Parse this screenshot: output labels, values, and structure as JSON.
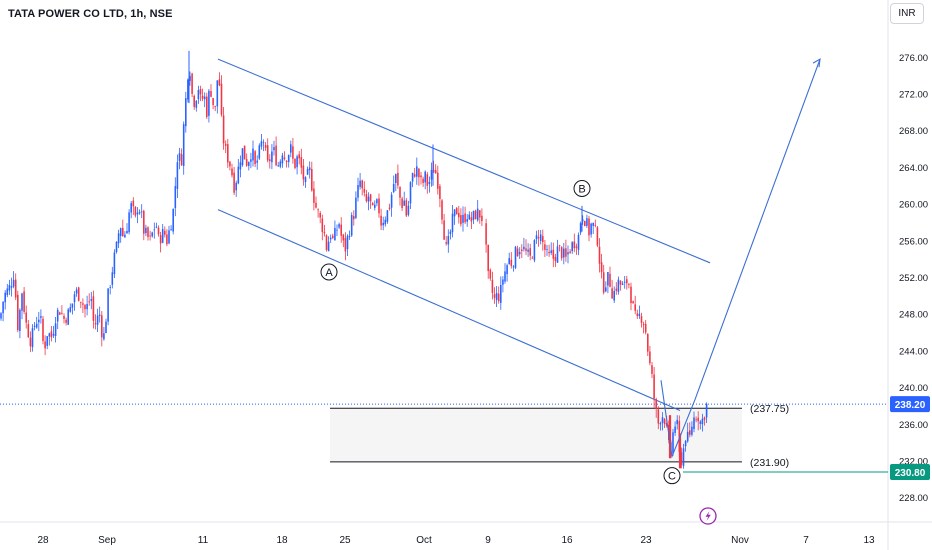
{
  "header": {
    "symbol_title": "TATA POWER CO LTD, 1h, NSE",
    "currency": "INR"
  },
  "chart_data": {
    "type": "candlestick",
    "y_axis": {
      "ticks": [
        "276.00",
        "272.00",
        "268.00",
        "264.00",
        "260.00",
        "256.00",
        "252.00",
        "248.00",
        "244.00",
        "240.00",
        "236.00",
        "232.00",
        "228.00"
      ],
      "range": [
        225,
        281
      ]
    },
    "x_axis": {
      "ticks": [
        "28",
        "Sep",
        "11",
        "18",
        "25",
        "Oct",
        "9",
        "16",
        "23",
        "Nov",
        "7",
        "13"
      ]
    },
    "price_path": [
      [
        0,
        247.5
      ],
      [
        4,
        250
      ],
      [
        10,
        251
      ],
      [
        14,
        252.5
      ],
      [
        18,
        246.5
      ],
      [
        22,
        250.5
      ],
      [
        26,
        247
      ],
      [
        31,
        245
      ],
      [
        35,
        247
      ],
      [
        40,
        248
      ],
      [
        44,
        244
      ],
      [
        47,
        246
      ],
      [
        52,
        245.5
      ],
      [
        56,
        248
      ],
      [
        60,
        248.5
      ],
      [
        64,
        247.5
      ],
      [
        68,
        248
      ],
      [
        72,
        249
      ],
      [
        75,
        250.5
      ],
      [
        80,
        250
      ],
      [
        85,
        248.5
      ],
      [
        88,
        249
      ],
      [
        91,
        250
      ],
      [
        94,
        246.5
      ],
      [
        97,
        247.5
      ],
      [
        100,
        248
      ],
      [
        103,
        245
      ],
      [
        105,
        246.5
      ],
      [
        108,
        250
      ],
      [
        111,
        252
      ],
      [
        114,
        254
      ],
      [
        117,
        255.5
      ],
      [
        120,
        258
      ],
      [
        123,
        256.5
      ],
      [
        126,
        257
      ],
      [
        129,
        259
      ],
      [
        132,
        260
      ],
      [
        135,
        258
      ],
      [
        138,
        260
      ],
      [
        141,
        259
      ],
      [
        144,
        257
      ],
      [
        147,
        256.5
      ],
      [
        150,
        256
      ],
      [
        153,
        257
      ],
      [
        156,
        258
      ],
      [
        158,
        256
      ],
      [
        161,
        256.5
      ],
      [
        164,
        257
      ],
      [
        167,
        256
      ],
      [
        170,
        257.5
      ],
      [
        173,
        259
      ],
      [
        176,
        263
      ],
      [
        178,
        266
      ],
      [
        181,
        264
      ],
      [
        184,
        269
      ],
      [
        187,
        273
      ],
      [
        189,
        276
      ],
      [
        192,
        272
      ],
      [
        195,
        271
      ],
      [
        198,
        273
      ],
      [
        201,
        271
      ],
      [
        204,
        272
      ],
      [
        207,
        270
      ],
      [
        210,
        273
      ],
      [
        213,
        271
      ],
      [
        216,
        270
      ],
      [
        218,
        275.5
      ],
      [
        220,
        272
      ],
      [
        222,
        268
      ],
      [
        225,
        266
      ],
      [
        228,
        265
      ],
      [
        231,
        264
      ],
      [
        234,
        262
      ],
      [
        237,
        263
      ],
      [
        240,
        265
      ],
      [
        243,
        266
      ],
      [
        246,
        264.5
      ],
      [
        249,
        265
      ],
      [
        252,
        266
      ],
      [
        255,
        264
      ],
      [
        258,
        265
      ],
      [
        261,
        266.5
      ],
      [
        264,
        267
      ],
      [
        267,
        264
      ],
      [
        270,
        265
      ],
      [
        273,
        266
      ],
      [
        276,
        265
      ],
      [
        279,
        264
      ],
      [
        282,
        266
      ],
      [
        285,
        265
      ],
      [
        288,
        265.5
      ],
      [
        291,
        266
      ],
      [
        294,
        264
      ],
      [
        297,
        265
      ],
      [
        300,
        264.5
      ],
      [
        303,
        263
      ],
      [
        306,
        262
      ],
      [
        309,
        264
      ],
      [
        312,
        262
      ],
      [
        315,
        260
      ],
      [
        318,
        259
      ],
      [
        321,
        258
      ],
      [
        324,
        257
      ],
      [
        327,
        255
      ],
      [
        330,
        257
      ],
      [
        333,
        256
      ],
      [
        336,
        257
      ],
      [
        339,
        258
      ],
      [
        342,
        256
      ],
      [
        345,
        255
      ],
      [
        348,
        256.5
      ],
      [
        351,
        258
      ],
      [
        354,
        259
      ],
      [
        357,
        261
      ],
      [
        360,
        262.5
      ],
      [
        363,
        261
      ],
      [
        366,
        260
      ],
      [
        369,
        261
      ],
      [
        372,
        259
      ],
      [
        375,
        259.5
      ],
      [
        378,
        260
      ],
      [
        381,
        258
      ],
      [
        384,
        258.5
      ],
      [
        387,
        259
      ],
      [
        390,
        260
      ],
      [
        393,
        262
      ],
      [
        396,
        263
      ],
      [
        399,
        261
      ],
      [
        402,
        260
      ],
      [
        405,
        260.5
      ],
      [
        407,
        258
      ],
      [
        410,
        262
      ],
      [
        413,
        263
      ],
      [
        416,
        264
      ],
      [
        419,
        263
      ],
      [
        422,
        262
      ],
      [
        425,
        263
      ],
      [
        428,
        262
      ],
      [
        431,
        263
      ],
      [
        434,
        264
      ],
      [
        437,
        263
      ],
      [
        440,
        261
      ],
      [
        443,
        258
      ],
      [
        446,
        255
      ],
      [
        449,
        256
      ],
      [
        452,
        258
      ],
      [
        455,
        259
      ],
      [
        458,
        259.5
      ],
      [
        461,
        258
      ],
      [
        464,
        258.5
      ],
      [
        467,
        259
      ],
      [
        470,
        258
      ],
      [
        473,
        258.5
      ],
      [
        476,
        259
      ],
      [
        479,
        259
      ],
      [
        482,
        258.5
      ],
      [
        486,
        255
      ],
      [
        488,
        252
      ],
      [
        491,
        251
      ],
      [
        494,
        249.5
      ],
      [
        497,
        250
      ],
      [
        500,
        250
      ],
      [
        503,
        252
      ],
      [
        506,
        253
      ],
      [
        509,
        254
      ],
      [
        512,
        253.5
      ],
      [
        515,
        254.5
      ],
      [
        518,
        255
      ],
      [
        521,
        255.5
      ],
      [
        524,
        255
      ],
      [
        527,
        254.5
      ],
      [
        530,
        254
      ],
      [
        533,
        255
      ],
      [
        536,
        256
      ],
      [
        539,
        257
      ],
      [
        542,
        256
      ],
      [
        545,
        255
      ],
      [
        548,
        254
      ],
      [
        551,
        254.5
      ],
      [
        554,
        254
      ],
      [
        557,
        255
      ],
      [
        560,
        255
      ],
      [
        563,
        254.5
      ],
      [
        566,
        254
      ],
      [
        569,
        255
      ],
      [
        572,
        255.5
      ],
      [
        575,
        256
      ],
      [
        578,
        256
      ],
      [
        580,
        258
      ],
      [
        583,
        259
      ],
      [
        586,
        258
      ],
      [
        589,
        257
      ],
      [
        592,
        258
      ],
      [
        595,
        257
      ],
      [
        598,
        256
      ],
      [
        601,
        252
      ],
      [
        604,
        251
      ],
      [
        607,
        252
      ],
      [
        610,
        251.5
      ],
      [
        613,
        250
      ],
      [
        616,
        251
      ],
      [
        619,
        251.5
      ],
      [
        622,
        251
      ],
      [
        625,
        251
      ],
      [
        628,
        252
      ],
      [
        631,
        250
      ],
      [
        634,
        248
      ],
      [
        637,
        247
      ],
      [
        640,
        248
      ],
      [
        643,
        247.5
      ],
      [
        646,
        246
      ],
      [
        649,
        243
      ],
      [
        652,
        241
      ],
      [
        655,
        238
      ],
      [
        658,
        236
      ],
      [
        661,
        237
      ],
      [
        664,
        237
      ],
      [
        667,
        235
      ],
      [
        670,
        232.5
      ],
      [
        672,
        234
      ],
      [
        674,
        236
      ],
      [
        677,
        236
      ],
      [
        680,
        231.5
      ],
      [
        683,
        233
      ],
      [
        686,
        235
      ],
      [
        689,
        234
      ],
      [
        692,
        236
      ],
      [
        695,
        237
      ],
      [
        698,
        237
      ],
      [
        701,
        236
      ],
      [
        704,
        237
      ],
      [
        707,
        238.2
      ]
    ],
    "channel_lines": [
      {
        "from": [
          "Sep 12",
          275.8
        ],
        "to": [
          "Oct 28",
          253.6
        ]
      },
      {
        "from": [
          "Sep 12",
          259.4
        ],
        "to": [
          "Oct 26",
          237.5
        ]
      }
    ],
    "horizontal_lines": [
      {
        "value": 237.75,
        "label": "(237.75)"
      },
      {
        "value": 231.9,
        "label": "(231.90)"
      }
    ],
    "zone": {
      "top": 237.75,
      "bottom": 231.9
    },
    "projection": {
      "points": [
        [
          661,
          240.8
        ],
        [
          672,
          232.5
        ],
        [
          695,
          238.7
        ],
        [
          820,
          275.8
        ]
      ]
    },
    "wave_labels": [
      {
        "label": "A",
        "price": 252.6
      },
      {
        "label": "B",
        "price": 261.7
      },
      {
        "label": "C",
        "price": 230.4
      }
    ],
    "last_price": {
      "value": "238.20",
      "color": "#2962ff"
    },
    "low_price": {
      "value": "230.80",
      "color": "#089981"
    },
    "colors": {
      "up": "#2962ff",
      "down": "#f23645",
      "lines": "#3b6fd4"
    }
  }
}
